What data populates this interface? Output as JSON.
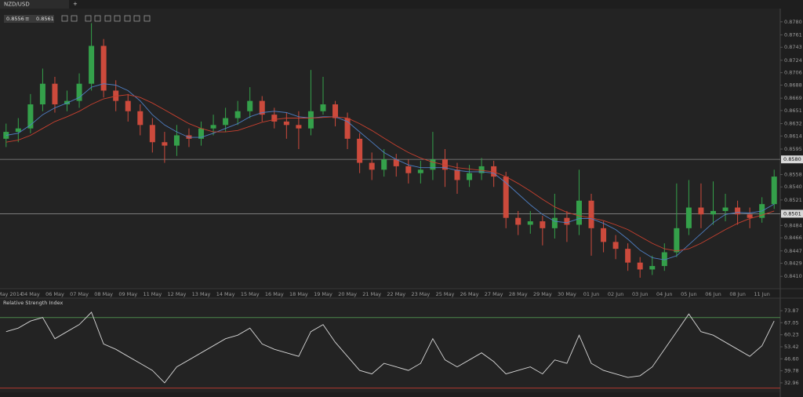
{
  "tab": "NZD/USD",
  "bid": 0.8556,
  "ask": 0.8561,
  "chart_data": [
    {
      "type": "candlestick",
      "categories": [
        "01 May 2014",
        null,
        "04 May",
        null,
        "06 May",
        null,
        "07 May",
        null,
        "08 May",
        null,
        "09 May",
        null,
        "11 May",
        null,
        "12 May",
        null,
        "13 May",
        null,
        "14 May",
        null,
        "15 May",
        null,
        "16 May",
        null,
        "18 May",
        null,
        "19 May",
        null,
        "20 May",
        null,
        "21 May",
        null,
        "22 May",
        null,
        "23 May",
        null,
        "25 May",
        null,
        "26 May",
        null,
        "27 May",
        null,
        "28 May",
        null,
        "29 May",
        null,
        "30 May",
        null,
        "01 Jun",
        null,
        "02 Jun",
        null,
        "03 Jun",
        null,
        "04 Jun",
        null,
        "05 Jun",
        null,
        "06 Jun",
        null,
        "08 Jun",
        null,
        "11 Jun",
        null
      ],
      "open": [
        0.861,
        0.862,
        0.8625,
        0.866,
        0.869,
        0.866,
        0.8665,
        0.869,
        0.8745,
        0.868,
        0.8665,
        0.865,
        0.863,
        0.8605,
        0.86,
        0.8615,
        0.861,
        0.8625,
        0.863,
        0.864,
        0.865,
        0.8665,
        0.8645,
        0.8635,
        0.863,
        0.8625,
        0.865,
        0.866,
        0.864,
        0.861,
        0.8575,
        0.8565,
        0.858,
        0.857,
        0.856,
        0.8565,
        0.858,
        0.8565,
        0.855,
        0.856,
        0.857,
        0.8555,
        0.8495,
        0.8485,
        0.849,
        0.848,
        0.8495,
        0.8485,
        0.852,
        0.848,
        0.846,
        0.845,
        0.843,
        0.842,
        0.8425,
        0.8445,
        0.848,
        0.851,
        0.85,
        0.8505,
        0.851,
        0.85,
        0.8495,
        0.8515
      ],
      "high": [
        0.8632,
        0.864,
        0.8675,
        0.8712,
        0.87,
        0.868,
        0.8705,
        0.8778,
        0.8755,
        0.8695,
        0.8675,
        0.866,
        0.864,
        0.862,
        0.863,
        0.8625,
        0.8635,
        0.8645,
        0.8655,
        0.8665,
        0.8685,
        0.8672,
        0.8655,
        0.8648,
        0.865,
        0.871,
        0.87,
        0.8665,
        0.8648,
        0.8618,
        0.859,
        0.8595,
        0.8588,
        0.858,
        0.8578,
        0.862,
        0.8595,
        0.8575,
        0.8572,
        0.8582,
        0.8578,
        0.8562,
        0.8505,
        0.8505,
        0.8498,
        0.853,
        0.8505,
        0.8565,
        0.853,
        0.849,
        0.847,
        0.8458,
        0.8438,
        0.844,
        0.8458,
        0.8545,
        0.855,
        0.8545,
        0.8548,
        0.853,
        0.852,
        0.851,
        0.8525,
        0.8565
      ],
      "low": [
        0.8598,
        0.8605,
        0.8618,
        0.865,
        0.8648,
        0.865,
        0.8655,
        0.868,
        0.867,
        0.865,
        0.8635,
        0.8615,
        0.859,
        0.8575,
        0.8585,
        0.8598,
        0.86,
        0.8615,
        0.862,
        0.863,
        0.864,
        0.8635,
        0.8625,
        0.861,
        0.8595,
        0.8615,
        0.8645,
        0.8628,
        0.8595,
        0.856,
        0.855,
        0.8555,
        0.8555,
        0.8545,
        0.8545,
        0.855,
        0.854,
        0.853,
        0.854,
        0.855,
        0.854,
        0.848,
        0.847,
        0.8472,
        0.8455,
        0.8465,
        0.846,
        0.847,
        0.844,
        0.8445,
        0.8435,
        0.8418,
        0.8408,
        0.8412,
        0.8418,
        0.8438,
        0.847,
        0.848,
        0.8485,
        0.849,
        0.8485,
        0.848,
        0.8488,
        0.8508
      ],
      "close": [
        0.862,
        0.8625,
        0.866,
        0.869,
        0.866,
        0.8665,
        0.869,
        0.8745,
        0.868,
        0.8665,
        0.865,
        0.863,
        0.8605,
        0.86,
        0.8615,
        0.861,
        0.8625,
        0.863,
        0.864,
        0.865,
        0.8665,
        0.8645,
        0.8635,
        0.863,
        0.8625,
        0.865,
        0.866,
        0.864,
        0.861,
        0.8575,
        0.8565,
        0.858,
        0.857,
        0.856,
        0.8565,
        0.858,
        0.8565,
        0.855,
        0.856,
        0.857,
        0.8555,
        0.8495,
        0.8485,
        0.849,
        0.848,
        0.8495,
        0.8485,
        0.852,
        0.848,
        0.846,
        0.845,
        0.843,
        0.842,
        0.8425,
        0.8445,
        0.848,
        0.851,
        0.85,
        0.8505,
        0.851,
        0.85,
        0.8495,
        0.8515,
        0.8555
      ],
      "up_color": "#34a04a",
      "down_color": "#cc4a3c",
      "lines": [
        {
          "color": "#4f7fc4",
          "values": [
            0.8615,
            0.8618,
            0.863,
            0.8645,
            0.8655,
            0.8662,
            0.867,
            0.8685,
            0.869,
            0.8688,
            0.868,
            0.8665,
            0.8645,
            0.863,
            0.862,
            0.8612,
            0.8612,
            0.8618,
            0.8625,
            0.8632,
            0.8642,
            0.8648,
            0.865,
            0.8648,
            0.8642,
            0.864,
            0.8642,
            0.8642,
            0.8635,
            0.862,
            0.8605,
            0.859,
            0.858,
            0.8572,
            0.8568,
            0.8568,
            0.8568,
            0.8564,
            0.8562,
            0.8562,
            0.856,
            0.8546,
            0.853,
            0.8514,
            0.85,
            0.849,
            0.8488,
            0.8494,
            0.8494,
            0.8487,
            0.8478,
            0.8464,
            0.8448,
            0.8437,
            0.8434,
            0.844,
            0.8456,
            0.8472,
            0.8488,
            0.85,
            0.8503,
            0.8502,
            0.8505,
            0.8515
          ]
        },
        {
          "color": "#c8402f",
          "values": [
            0.8605,
            0.8608,
            0.8615,
            0.8625,
            0.8635,
            0.8642,
            0.865,
            0.866,
            0.8668,
            0.8672,
            0.8674,
            0.867,
            0.8662,
            0.8652,
            0.8642,
            0.8632,
            0.8625,
            0.862,
            0.862,
            0.8622,
            0.8628,
            0.8634,
            0.8638,
            0.864,
            0.864,
            0.864,
            0.8641,
            0.8642,
            0.864,
            0.8632,
            0.8622,
            0.8611,
            0.86,
            0.859,
            0.8582,
            0.8576,
            0.8572,
            0.8568,
            0.8566,
            0.8564,
            0.8562,
            0.8555,
            0.8545,
            0.8534,
            0.8522,
            0.8511,
            0.8503,
            0.8498,
            0.8495,
            0.8491,
            0.8485,
            0.8478,
            0.8468,
            0.8458,
            0.845,
            0.8447,
            0.845,
            0.8458,
            0.8468,
            0.8478,
            0.8487,
            0.8494,
            0.8499,
            0.8505
          ]
        }
      ],
      "ylim": [
        0.8392,
        0.8798
      ],
      "yticks": [
        {
          "value": 0.878,
          "label": "0.8780"
        },
        {
          "value": 0.8761,
          "label": "0.8761"
        },
        {
          "value": 0.8743,
          "label": "0.8743"
        },
        {
          "value": 0.8724,
          "label": "0.8724"
        },
        {
          "value": 0.8706,
          "label": "0.8706"
        },
        {
          "value": 0.8688,
          "label": "0.8688"
        },
        {
          "value": 0.8669,
          "label": "0.8669"
        },
        {
          "value": 0.8651,
          "label": "0.8651"
        },
        {
          "value": 0.8632,
          "label": "0.8632"
        },
        {
          "value": 0.8614,
          "label": "0.8614"
        },
        {
          "value": 0.8595,
          "label": "0.8595"
        },
        {
          "value": 0.8558,
          "label": "0.8558"
        },
        {
          "value": 0.854,
          "label": "0.8540"
        },
        {
          "value": 0.8521,
          "label": "0.8521"
        },
        {
          "value": 0.8484,
          "label": "0.8484"
        },
        {
          "value": 0.8466,
          "label": "0.8466"
        },
        {
          "value": 0.8447,
          "label": "0.8447"
        },
        {
          "value": 0.8429,
          "label": "0.8429"
        },
        {
          "value": 0.841,
          "label": "0.8410"
        }
      ],
      "levels": [
        {
          "value": 0.858,
          "label": "0.8580"
        },
        {
          "value": 0.8501,
          "label": "0.8501"
        }
      ]
    },
    {
      "type": "line",
      "title": "Relative Strength Index",
      "color": "#d8d8d8",
      "values": [
        62,
        64,
        68,
        70,
        58,
        62,
        66,
        73,
        55,
        52,
        48,
        44,
        40,
        33,
        42,
        46,
        50,
        54,
        58,
        60,
        64,
        55,
        52,
        50,
        48,
        62,
        66,
        56,
        48,
        40,
        38,
        44,
        42,
        40,
        44,
        58,
        46,
        42,
        46,
        50,
        45,
        38,
        40,
        42,
        38,
        46,
        44,
        60,
        44,
        40,
        38,
        36,
        37,
        42,
        52,
        62,
        72,
        62,
        60,
        56,
        52,
        48,
        54,
        68
      ],
      "ylim": [
        27.6,
        81.0
      ],
      "yticks": [
        73.87,
        67.05,
        60.23,
        53.42,
        {
          "value": 46.6,
          "label": "46.60"
        },
        39.78,
        32.96
      ],
      "levels": [
        {
          "value": 70,
          "color": "#4c8a4c"
        },
        {
          "value": 30,
          "color": "#b03a30"
        }
      ]
    }
  ]
}
